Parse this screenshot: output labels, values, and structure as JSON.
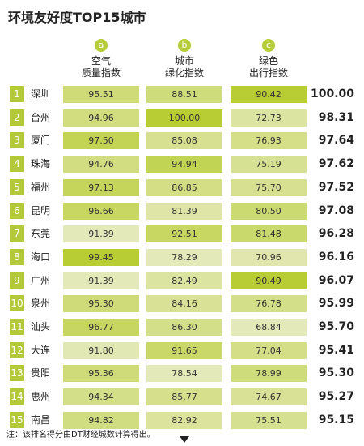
{
  "header": {
    "title": "环境友好度TOP15城市",
    "columns": [
      {
        "letter": "a",
        "line1": "空气",
        "line2": "质量指数"
      },
      {
        "letter": "b",
        "line1": "城市",
        "line2": "绿化指数"
      },
      {
        "letter": "c",
        "line1": "绿色",
        "line2": "出行指数"
      }
    ]
  },
  "table": {
    "rows": [
      [
        "1",
        "深圳",
        "95.51",
        "88.51",
        "90.42",
        "100.00"
      ],
      [
        "2",
        "台州",
        "94.96",
        "100.00",
        "72.73",
        "98.31"
      ],
      [
        "3",
        "厦门",
        "97.50",
        "85.08",
        "76.93",
        "97.64"
      ],
      [
        "4",
        "珠海",
        "94.76",
        "94.94",
        "75.19",
        "97.62"
      ],
      [
        "5",
        "福州",
        "97.13",
        "86.85",
        "75.70",
        "97.52"
      ],
      [
        "6",
        "昆明",
        "96.66",
        "81.39",
        "80.50",
        "97.08"
      ],
      [
        "7",
        "东莞",
        "91.39",
        "92.51",
        "81.48",
        "96.28"
      ],
      [
        "8",
        "海口",
        "99.45",
        "78.29",
        "70.96",
        "96.16"
      ],
      [
        "9",
        "广州",
        "91.39",
        "82.49",
        "90.49",
        "96.07"
      ],
      [
        "10",
        "泉州",
        "95.30",
        "84.16",
        "76.78",
        "95.99"
      ],
      [
        "11",
        "汕头",
        "96.77",
        "86.30",
        "68.84",
        "95.70"
      ],
      [
        "12",
        "大连",
        "91.80",
        "91.65",
        "77.04",
        "95.41"
      ],
      [
        "13",
        "贵阳",
        "95.36",
        "78.54",
        "78.99",
        "95.30"
      ],
      [
        "14",
        "惠州",
        "94.34",
        "85.77",
        "74.67",
        "95.27"
      ],
      [
        "15",
        "南昌",
        "94.82",
        "82.92",
        "75.51",
        "95.15"
      ]
    ]
  },
  "footer": {
    "note": "注：该排名得分由DT财经城数计算得出。"
  }
}
